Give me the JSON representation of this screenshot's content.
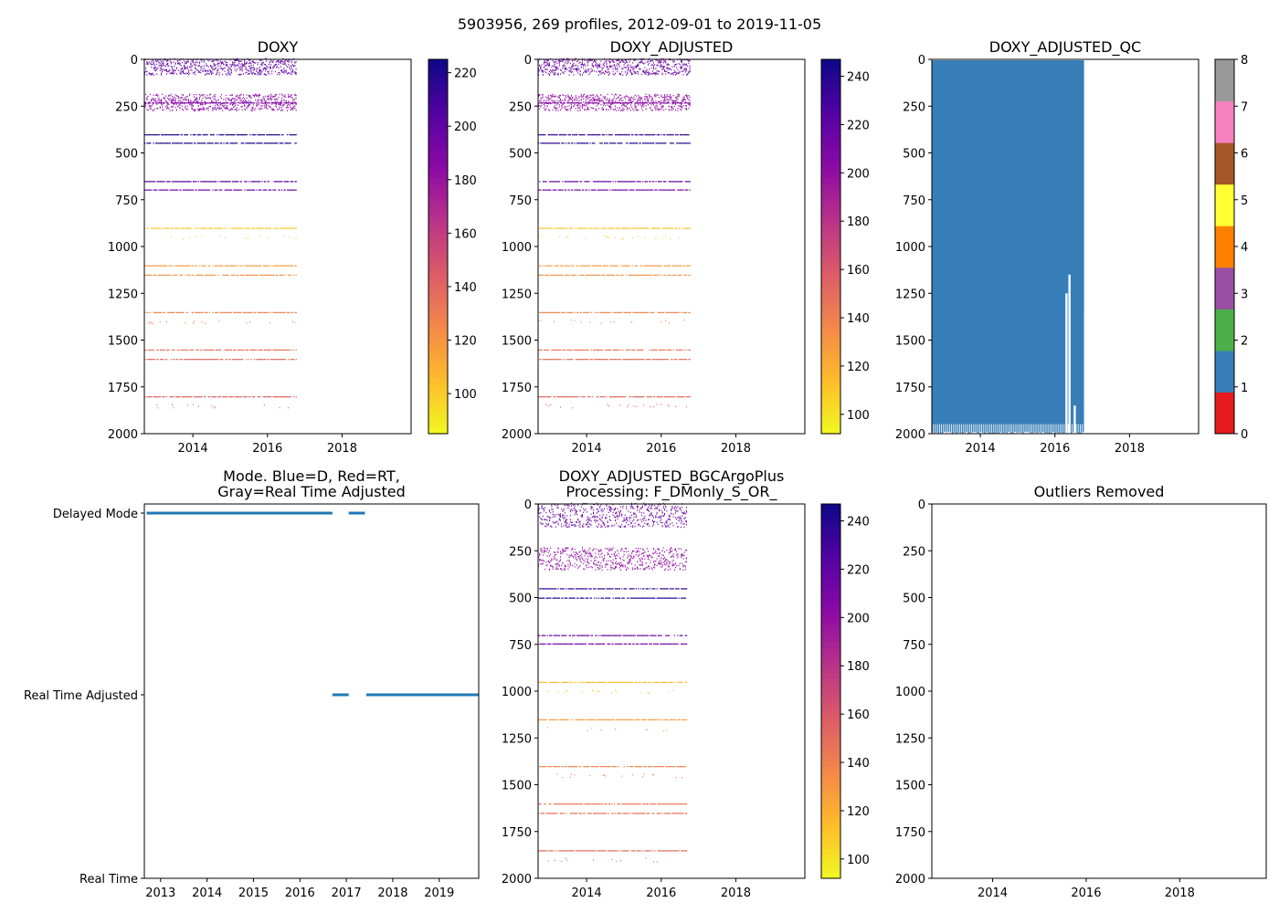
{
  "figure_title": "5903956, 269 profiles, 2012-09-01 to 2019-11-05",
  "chart_data": [
    {
      "id": "doxy",
      "type": "heatmap",
      "title": "DOXY",
      "ylim": [
        2000,
        0
      ],
      "yticks": [
        "0",
        "250",
        "500",
        "750",
        "1000",
        "1250",
        "1500",
        "1750",
        "2000"
      ],
      "xlim": [
        2012.7,
        2019.85
      ],
      "xticks": [
        "2014",
        "2016",
        "2018"
      ],
      "data_xrange": [
        2012.7,
        2016.8
      ],
      "layers": [
        {
          "y": 15,
          "v": 200,
          "scatter": true,
          "span": 55
        },
        {
          "y": 205,
          "v": 185,
          "scatter": true,
          "span": 55
        },
        {
          "y": 230,
          "v": 190
        },
        {
          "y": 400,
          "v": 220
        },
        {
          "y": 445,
          "v": 222
        },
        {
          "y": 650,
          "v": 205
        },
        {
          "y": 695,
          "v": 195
        },
        {
          "y": 900,
          "v": 102
        },
        {
          "y": 950,
          "v": 100,
          "sparse": true
        },
        {
          "y": 1100,
          "v": 118
        },
        {
          "y": 1150,
          "v": 122
        },
        {
          "y": 1350,
          "v": 128
        },
        {
          "y": 1400,
          "v": 130,
          "sparse": true
        },
        {
          "y": 1550,
          "v": 136
        },
        {
          "y": 1600,
          "v": 138
        },
        {
          "y": 1800,
          "v": 142
        },
        {
          "y": 1850,
          "v": 146,
          "sparse": true
        }
      ],
      "colorbar": {
        "colormap": "plasma_r",
        "vmin": 85,
        "vmax": 225,
        "ticks": [
          "100",
          "120",
          "140",
          "160",
          "180",
          "200",
          "220"
        ]
      }
    },
    {
      "id": "doxy_adjusted",
      "type": "heatmap",
      "title": "DOXY_ADJUSTED",
      "ylim": [
        2000,
        0
      ],
      "yticks": [
        "0",
        "250",
        "500",
        "750",
        "1000",
        "1250",
        "1500",
        "1750",
        "2000"
      ],
      "xlim": [
        2012.7,
        2019.85
      ],
      "xticks": [
        "2014",
        "2016",
        "2018"
      ],
      "data_xrange": [
        2012.7,
        2016.8
      ],
      "layers": [
        {
          "y": 15,
          "v": 215,
          "scatter": true,
          "span": 55
        },
        {
          "y": 205,
          "v": 200,
          "scatter": true,
          "span": 55
        },
        {
          "y": 230,
          "v": 205
        },
        {
          "y": 400,
          "v": 235
        },
        {
          "y": 445,
          "v": 238
        },
        {
          "y": 650,
          "v": 220
        },
        {
          "y": 695,
          "v": 210
        },
        {
          "y": 900,
          "v": 112
        },
        {
          "y": 950,
          "v": 108,
          "sparse": true
        },
        {
          "y": 1100,
          "v": 128
        },
        {
          "y": 1150,
          "v": 132
        },
        {
          "y": 1350,
          "v": 138
        },
        {
          "y": 1400,
          "v": 140,
          "sparse": true
        },
        {
          "y": 1550,
          "v": 146
        },
        {
          "y": 1600,
          "v": 148
        },
        {
          "y": 1800,
          "v": 152
        },
        {
          "y": 1850,
          "v": 156,
          "sparse": true
        }
      ],
      "colorbar": {
        "colormap": "plasma_r",
        "vmin": 92,
        "vmax": 247,
        "ticks": [
          "100",
          "120",
          "140",
          "160",
          "180",
          "200",
          "220",
          "240"
        ]
      }
    },
    {
      "id": "doxy_adjusted_qc",
      "type": "heatmap",
      "title": "DOXY_ADJUSTED_QC",
      "ylim": [
        2000,
        0
      ],
      "yticks": [
        "0",
        "250",
        "500",
        "750",
        "1000",
        "1250",
        "1500",
        "1750",
        "2000"
      ],
      "xlim": [
        2012.7,
        2019.85
      ],
      "xticks": [
        "2014",
        "2016",
        "2018"
      ],
      "qc_block": {
        "x_start": 2012.7,
        "x_end": 2016.78,
        "y_top": 5,
        "y_bottom": 1950,
        "value": 1
      },
      "qc_gaps": [
        {
          "x": 2016.28,
          "y_top": 1250,
          "y_bottom": 2000
        },
        {
          "x": 2016.36,
          "y_top": 1150,
          "y_bottom": 2000
        },
        {
          "x": 2016.5,
          "y_top": 1850,
          "y_bottom": 2000
        },
        {
          "x": 2016.78,
          "y_top": 1350,
          "y_bottom": 2000
        }
      ],
      "colorbar": {
        "type": "discrete",
        "ticks": [
          "0",
          "1",
          "2",
          "3",
          "4",
          "5",
          "6",
          "7",
          "8"
        ],
        "colors": [
          "#e41a1c",
          "#377eb8",
          "#4daf4a",
          "#984ea3",
          "#ff7f00",
          "#ffff33",
          "#a65628",
          "#f781bf",
          "#999999"
        ]
      }
    },
    {
      "id": "mode",
      "type": "scatter",
      "title": "Mode. Blue=D, Red=RT,\nGray=Real Time Adjusted",
      "categories": [
        "Delayed Mode",
        "Real Time Adjusted",
        "Real Time"
      ],
      "xlim": [
        2012.65,
        2019.85
      ],
      "xticks": [
        "2013",
        "2014",
        "2015",
        "2016",
        "2017",
        "2018",
        "2019"
      ],
      "series": [
        {
          "name": "Delayed Mode",
          "color": "#1f77b4",
          "segments": [
            [
              2012.7,
              2016.7
            ],
            [
              2017.05,
              2017.4
            ]
          ]
        },
        {
          "name": "Real Time Adjusted",
          "color": "#1f77b4",
          "segments": [
            [
              2016.7,
              2017.05
            ],
            [
              2017.43,
              2019.85
            ]
          ]
        }
      ]
    },
    {
      "id": "bgc_plus",
      "type": "heatmap",
      "title": "DOXY_ADJUSTED_BGCArgoPlus\nProcessing: F_DMonly_S_OR_",
      "ylim": [
        2000,
        0
      ],
      "yticks": [
        "0",
        "250",
        "500",
        "750",
        "1000",
        "1250",
        "1500",
        "1750",
        "2000"
      ],
      "xlim": [
        2012.7,
        2019.85
      ],
      "xticks": [
        "2014",
        "2016",
        "2018"
      ],
      "data_xrange": [
        2012.7,
        2016.7
      ],
      "layers": [
        {
          "y": 25,
          "v": 215,
          "scatter": true,
          "span": 80
        },
        {
          "y": 260,
          "v": 200,
          "scatter": true,
          "span": 75
        },
        {
          "y": 450,
          "v": 235
        },
        {
          "y": 500,
          "v": 238
        },
        {
          "y": 700,
          "v": 215
        },
        {
          "y": 745,
          "v": 210
        },
        {
          "y": 950,
          "v": 115
        },
        {
          "y": 1000,
          "v": 110,
          "sparse": true
        },
        {
          "y": 1150,
          "v": 128
        },
        {
          "y": 1200,
          "v": 130,
          "sparse": true
        },
        {
          "y": 1400,
          "v": 138
        },
        {
          "y": 1450,
          "v": 140,
          "sparse": true
        },
        {
          "y": 1600,
          "v": 145
        },
        {
          "y": 1650,
          "v": 148
        },
        {
          "y": 1850,
          "v": 152
        },
        {
          "y": 1900,
          "v": 155,
          "sparse": true
        }
      ],
      "colorbar": {
        "colormap": "plasma_r",
        "vmin": 92,
        "vmax": 247,
        "ticks": [
          "100",
          "120",
          "140",
          "160",
          "180",
          "200",
          "220",
          "240"
        ]
      }
    },
    {
      "id": "outliers",
      "type": "scatter",
      "title": "Outliers Removed",
      "ylim": [
        2000,
        0
      ],
      "yticks": [
        "0",
        "250",
        "500",
        "750",
        "1000",
        "1250",
        "1500",
        "1750",
        "2000"
      ],
      "xlim": [
        2012.7,
        2019.85
      ],
      "xticks": [
        "2014",
        "2016",
        "2018"
      ],
      "points": []
    }
  ]
}
